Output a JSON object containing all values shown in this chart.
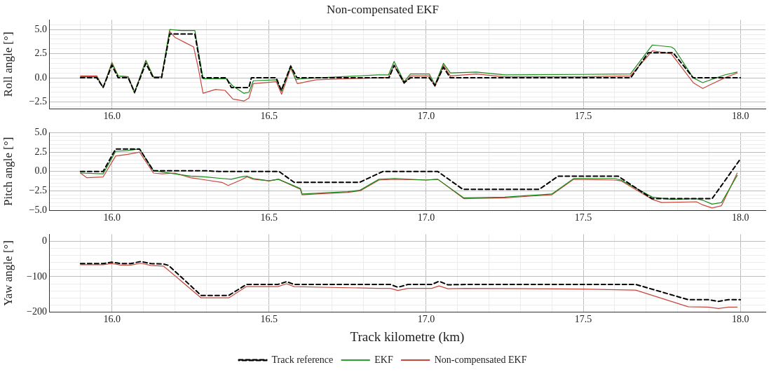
{
  "chart_data": [
    {
      "type": "line",
      "title": "Non-compensated EKF",
      "ylabel": "Roll angle [°]",
      "grid": true,
      "xlim": [
        15.8,
        18.08
      ],
      "xticks": [
        {
          "value": 15.8,
          "label": null
        },
        {
          "value": 15.9,
          "label": null
        },
        {
          "value": 16.0,
          "label": "16.0"
        },
        {
          "value": 16.1,
          "label": null
        },
        {
          "value": 16.2,
          "label": null
        },
        {
          "value": 16.3,
          "label": null
        },
        {
          "value": 16.4,
          "label": null
        },
        {
          "value": 16.5,
          "label": "16.5"
        },
        {
          "value": 16.6,
          "label": null
        },
        {
          "value": 16.7,
          "label": null
        },
        {
          "value": 16.8,
          "label": null
        },
        {
          "value": 16.9,
          "label": null
        },
        {
          "value": 17.0,
          "label": "17.0"
        },
        {
          "value": 17.1,
          "label": null
        },
        {
          "value": 17.2,
          "label": null
        },
        {
          "value": 17.3,
          "label": null
        },
        {
          "value": 17.4,
          "label": null
        },
        {
          "value": 17.5,
          "label": "17.5"
        },
        {
          "value": 17.6,
          "label": null
        },
        {
          "value": 17.7,
          "label": null
        },
        {
          "value": 17.8,
          "label": null
        },
        {
          "value": 17.9,
          "label": null
        },
        {
          "value": 18.0,
          "label": "18.0"
        }
      ],
      "ylim": [
        -3.2,
        6
      ],
      "yticks": [
        {
          "value": -3,
          "label": null
        },
        {
          "value": -2.5,
          "label": "−2.5"
        },
        {
          "value": -2,
          "label": null
        },
        {
          "value": -1.5,
          "label": null
        },
        {
          "value": -1,
          "label": null
        },
        {
          "value": -0.5,
          "label": null
        },
        {
          "value": 0,
          "label": "0.0"
        },
        {
          "value": 0.5,
          "label": null
        },
        {
          "value": 1,
          "label": null
        },
        {
          "value": 1.5,
          "label": null
        },
        {
          "value": 2,
          "label": null
        },
        {
          "value": 2.5,
          "label": "2.5"
        },
        {
          "value": 3,
          "label": null
        },
        {
          "value": 3.5,
          "label": null
        },
        {
          "value": 4,
          "label": null
        },
        {
          "value": 4.5,
          "label": null
        },
        {
          "value": 5,
          "label": "5.0"
        },
        {
          "value": 5.5,
          "label": null
        }
      ],
      "series": [
        {
          "color": "#000000",
          "line_style": "dashed",
          "x": [
            15.9,
            15.952,
            15.972,
            16.0,
            16.02,
            16.052,
            16.072,
            16.108,
            16.132,
            16.158,
            16.184,
            16.264,
            16.288,
            16.364,
            16.38,
            16.436,
            16.444,
            16.523,
            16.539,
            16.569,
            16.589,
            16.882,
            16.898,
            16.93,
            16.95,
            17.01,
            17.028,
            17.055,
            17.077,
            17.651,
            17.707,
            17.786,
            17.85,
            18.0
          ],
          "values": [
            0,
            0,
            -1.0,
            1.3,
            0,
            0,
            -1.5,
            1.5,
            0,
            0,
            4.55,
            4.55,
            0,
            0,
            -1.0,
            -1.0,
            0,
            0,
            -1.3,
            1.2,
            0,
            0,
            1.3,
            -0.5,
            0,
            0,
            -0.8,
            1.1,
            0,
            0,
            2.6,
            2.6,
            0,
            0
          ]
        },
        {
          "color": "#1a8a1a",
          "line_style": "solid",
          "x": [
            15.9,
            15.952,
            15.972,
            16.0,
            16.02,
            16.052,
            16.072,
            16.108,
            16.132,
            16.158,
            16.184,
            16.22,
            16.264,
            16.29,
            16.364,
            16.385,
            16.42,
            16.436,
            16.45,
            16.523,
            16.54,
            16.569,
            16.585,
            16.6,
            16.846,
            16.88,
            16.898,
            16.93,
            16.95,
            17.01,
            17.028,
            17.055,
            17.077,
            17.16,
            17.25,
            17.5,
            17.65,
            17.72,
            17.78,
            17.79,
            17.85,
            17.88,
            17.95,
            17.99
          ],
          "values": [
            0.1,
            0.1,
            -1.0,
            1.5,
            0.2,
            0.1,
            -1.5,
            1.8,
            0.1,
            0.1,
            5.0,
            4.9,
            4.9,
            -0.1,
            -0.1,
            -0.85,
            -1.6,
            -1.5,
            -0.3,
            -0.2,
            -1.4,
            1.3,
            -0.2,
            -0.1,
            0.3,
            0.3,
            1.7,
            -0.4,
            0.4,
            0.4,
            -0.7,
            1.5,
            0.5,
            0.6,
            0.3,
            0.35,
            0.4,
            3.4,
            3.2,
            3.0,
            0.0,
            -0.5,
            0.3,
            0.6
          ]
        },
        {
          "color": "#c8463c",
          "line_style": "solid",
          "x": [
            15.9,
            15.952,
            15.972,
            16.0,
            16.02,
            16.052,
            16.072,
            16.108,
            16.132,
            16.158,
            16.184,
            16.2,
            16.23,
            16.26,
            16.275,
            16.29,
            16.33,
            16.36,
            16.385,
            16.42,
            16.436,
            16.45,
            16.523,
            16.54,
            16.569,
            16.59,
            16.65,
            16.846,
            16.88,
            16.898,
            16.93,
            16.95,
            17.01,
            17.028,
            17.055,
            17.077,
            17.16,
            17.25,
            17.5,
            17.65,
            17.72,
            17.78,
            17.85,
            17.88,
            17.95,
            17.99
          ],
          "values": [
            0.2,
            0.2,
            -1.0,
            1.6,
            0.2,
            0.1,
            -1.6,
            1.8,
            0.1,
            0.1,
            4.8,
            4.2,
            3.7,
            3.2,
            1.0,
            -1.6,
            -1.2,
            -1.3,
            -2.2,
            -2.4,
            -2.1,
            -0.6,
            -0.4,
            -1.7,
            1.0,
            -0.6,
            -0.2,
            0.0,
            0.05,
            1.3,
            -0.6,
            0.2,
            0.2,
            -0.9,
            1.3,
            0.2,
            0.4,
            0.1,
            0.1,
            0.2,
            2.8,
            2.5,
            -0.5,
            -1.1,
            0.0,
            0.5
          ]
        }
      ]
    },
    {
      "type": "line",
      "ylabel": "Pitch angle [°]",
      "grid": true,
      "xlim": [
        15.8,
        18.08
      ],
      "xticks": [
        {
          "value": 15.8,
          "label": null
        },
        {
          "value": 15.9,
          "label": null
        },
        {
          "value": 16.0,
          "label": "16.0"
        },
        {
          "value": 16.1,
          "label": null
        },
        {
          "value": 16.2,
          "label": null
        },
        {
          "value": 16.3,
          "label": null
        },
        {
          "value": 16.4,
          "label": null
        },
        {
          "value": 16.5,
          "label": "16.5"
        },
        {
          "value": 16.6,
          "label": null
        },
        {
          "value": 16.7,
          "label": null
        },
        {
          "value": 16.8,
          "label": null
        },
        {
          "value": 16.9,
          "label": null
        },
        {
          "value": 17.0,
          "label": "17.0"
        },
        {
          "value": 17.1,
          "label": null
        },
        {
          "value": 17.2,
          "label": null
        },
        {
          "value": 17.3,
          "label": null
        },
        {
          "value": 17.4,
          "label": null
        },
        {
          "value": 17.5,
          "label": "17.5"
        },
        {
          "value": 17.6,
          "label": null
        },
        {
          "value": 17.7,
          "label": null
        },
        {
          "value": 17.8,
          "label": null
        },
        {
          "value": 17.9,
          "label": null
        },
        {
          "value": 18.0,
          "label": "18.0"
        }
      ],
      "ylim": [
        -5,
        5
      ],
      "yticks": [
        {
          "value": -5,
          "label": "−5.0"
        },
        {
          "value": -4.5,
          "label": null
        },
        {
          "value": -4,
          "label": null
        },
        {
          "value": -3.5,
          "label": null
        },
        {
          "value": -3,
          "label": null
        },
        {
          "value": -2.5,
          "label": "−2.5"
        },
        {
          "value": -2,
          "label": null
        },
        {
          "value": -1.5,
          "label": null
        },
        {
          "value": -1,
          "label": null
        },
        {
          "value": -0.5,
          "label": null
        },
        {
          "value": 0,
          "label": "0.0"
        },
        {
          "value": 0.5,
          "label": null
        },
        {
          "value": 1,
          "label": null
        },
        {
          "value": 1.5,
          "label": null
        },
        {
          "value": 2,
          "label": null
        },
        {
          "value": 2.5,
          "label": "2.5"
        },
        {
          "value": 3,
          "label": null
        },
        {
          "value": 3.5,
          "label": null
        },
        {
          "value": 4,
          "label": null
        },
        {
          "value": 4.5,
          "label": null
        },
        {
          "value": 5,
          "label": "5.0"
        }
      ],
      "series": [
        {
          "color": "#000000",
          "line_style": "dashed",
          "x": [
            15.9,
            15.972,
            16.012,
            16.088,
            16.132,
            16.296,
            16.34,
            16.532,
            16.58,
            16.788,
            16.862,
            17.037,
            17.117,
            17.36,
            17.42,
            17.611,
            17.719,
            17.91,
            18.0
          ],
          "values": [
            0,
            0,
            2.9,
            2.9,
            0.1,
            0.1,
            0,
            0,
            -1.4,
            -1.4,
            0,
            0,
            -2.3,
            -2.3,
            -0.6,
            -0.6,
            -3.5,
            -3.5,
            1.6
          ]
        },
        {
          "color": "#1a8a1a",
          "line_style": "solid",
          "x": [
            15.9,
            15.972,
            16.012,
            16.05,
            16.088,
            16.132,
            16.2,
            16.25,
            16.3,
            16.35,
            16.38,
            16.41,
            16.43,
            16.45,
            16.5,
            16.53,
            16.6,
            16.605,
            16.65,
            16.75,
            16.79,
            16.85,
            16.9,
            17.0,
            17.037,
            17.12,
            17.25,
            17.36,
            17.4,
            17.47,
            17.6,
            17.62,
            17.72,
            17.78,
            17.86,
            17.88,
            17.91,
            17.94,
            17.99
          ],
          "values": [
            -0.2,
            -0.3,
            2.6,
            2.7,
            2.9,
            0.1,
            -0.3,
            -0.6,
            -0.7,
            -0.9,
            -1.0,
            -0.7,
            -0.6,
            -0.9,
            -1.2,
            -1.0,
            -2.2,
            -2.9,
            -2.8,
            -2.6,
            -2.4,
            -1.0,
            -0.9,
            -1.1,
            -1.0,
            -3.4,
            -3.3,
            -3.0,
            -2.9,
            -0.9,
            -0.9,
            -1.1,
            -3.3,
            -3.6,
            -3.5,
            -3.7,
            -4.2,
            -4.0,
            -0.5
          ]
        },
        {
          "color": "#c8463c",
          "line_style": "solid",
          "x": [
            15.9,
            15.92,
            15.972,
            16.012,
            16.05,
            16.088,
            16.132,
            16.16,
            16.2,
            16.25,
            16.3,
            16.35,
            16.37,
            16.41,
            16.43,
            16.45,
            16.5,
            16.53,
            16.6,
            16.605,
            16.65,
            16.75,
            16.79,
            16.85,
            16.9,
            17.0,
            17.037,
            17.12,
            17.25,
            17.36,
            17.4,
            17.47,
            17.6,
            17.62,
            17.72,
            17.75,
            17.86,
            17.88,
            17.91,
            17.94,
            17.99
          ],
          "values": [
            -0.2,
            -0.8,
            -0.7,
            2.0,
            2.2,
            2.5,
            -0.2,
            -0.3,
            -0.2,
            -0.8,
            -1.1,
            -1.4,
            -1.8,
            -1.1,
            -0.7,
            -1.0,
            -1.2,
            -1.0,
            -2.3,
            -3.0,
            -2.9,
            -2.7,
            -2.5,
            -1.1,
            -1.0,
            -1.1,
            -1.0,
            -3.5,
            -3.4,
            -3.1,
            -3.0,
            -1.0,
            -1.1,
            -1.2,
            -3.6,
            -4.0,
            -3.9,
            -4.3,
            -4.7,
            -4.4,
            -0.2
          ]
        }
      ]
    },
    {
      "type": "line",
      "ylabel": "Yaw angle [°]",
      "xlabel": "Track kilometre (km)",
      "grid": true,
      "legend": "bottom",
      "xlim": [
        15.8,
        18.08
      ],
      "xticks": [
        {
          "value": 15.8,
          "label": null
        },
        {
          "value": 15.9,
          "label": null
        },
        {
          "value": 16.0,
          "label": "16.0"
        },
        {
          "value": 16.1,
          "label": null
        },
        {
          "value": 16.2,
          "label": null
        },
        {
          "value": 16.3,
          "label": null
        },
        {
          "value": 16.4,
          "label": null
        },
        {
          "value": 16.5,
          "label": "16.5"
        },
        {
          "value": 16.6,
          "label": null
        },
        {
          "value": 16.7,
          "label": null
        },
        {
          "value": 16.8,
          "label": null
        },
        {
          "value": 16.9,
          "label": null
        },
        {
          "value": 17.0,
          "label": "17.0"
        },
        {
          "value": 17.1,
          "label": null
        },
        {
          "value": 17.2,
          "label": null
        },
        {
          "value": 17.3,
          "label": null
        },
        {
          "value": 17.4,
          "label": null
        },
        {
          "value": 17.5,
          "label": "17.5"
        },
        {
          "value": 17.6,
          "label": null
        },
        {
          "value": 17.7,
          "label": null
        },
        {
          "value": 17.8,
          "label": null
        },
        {
          "value": 17.9,
          "label": null
        },
        {
          "value": 18.0,
          "label": "18.0"
        }
      ],
      "ylim": [
        -200,
        20
      ],
      "yticks": [
        {
          "value": -200,
          "label": "−200"
        },
        {
          "value": -180,
          "label": null
        },
        {
          "value": -160,
          "label": null
        },
        {
          "value": -140,
          "label": null
        },
        {
          "value": -120,
          "label": null
        },
        {
          "value": -100,
          "label": "−100"
        },
        {
          "value": -80,
          "label": null
        },
        {
          "value": -60,
          "label": null
        },
        {
          "value": -40,
          "label": null
        },
        {
          "value": -20,
          "label": null
        },
        {
          "value": 0,
          "label": "0"
        }
      ],
      "series": [
        {
          "name": "Track reference",
          "color": "#000000",
          "line_style": "dashed",
          "x": [
            15.9,
            15.972,
            16.0,
            16.028,
            16.06,
            16.092,
            16.124,
            16.164,
            16.18,
            16.284,
            16.372,
            16.428,
            16.528,
            16.556,
            16.58,
            16.846,
            16.886,
            16.91,
            16.942,
            17.018,
            17.041,
            17.069,
            17.125,
            17.667,
            17.834,
            17.898,
            17.93,
            17.962,
            18.0
          ],
          "values": [
            -63,
            -63,
            -59,
            -63,
            -63,
            -57,
            -63,
            -64,
            -68,
            -153,
            -153,
            -122,
            -122,
            -114,
            -122,
            -122,
            -122,
            -130,
            -122,
            -122,
            -113,
            -123,
            -122,
            -122,
            -165,
            -165,
            -170,
            -165,
            -165
          ]
        },
        {
          "name": "EKF",
          "color": "#2ca02c",
          "line_style": "solid"
        },
        {
          "name": "Non-compensated EKF",
          "color": "#c8463c",
          "line_style": "solid",
          "x": [
            15.9,
            15.972,
            16.0,
            16.028,
            16.06,
            16.092,
            16.124,
            16.164,
            16.284,
            16.372,
            16.428,
            16.528,
            16.556,
            16.58,
            16.846,
            16.886,
            16.91,
            16.942,
            17.018,
            17.041,
            17.069,
            17.125,
            17.5,
            17.667,
            17.834,
            17.898,
            17.93,
            17.962,
            17.99
          ],
          "values": [
            -66,
            -66,
            -63,
            -67,
            -67,
            -62,
            -68,
            -70,
            -160,
            -160,
            -128,
            -128,
            -120,
            -128,
            -133,
            -133,
            -139,
            -133,
            -133,
            -126,
            -134,
            -133,
            -135,
            -138,
            -185,
            -186,
            -190,
            -186,
            -186
          ]
        }
      ]
    }
  ]
}
